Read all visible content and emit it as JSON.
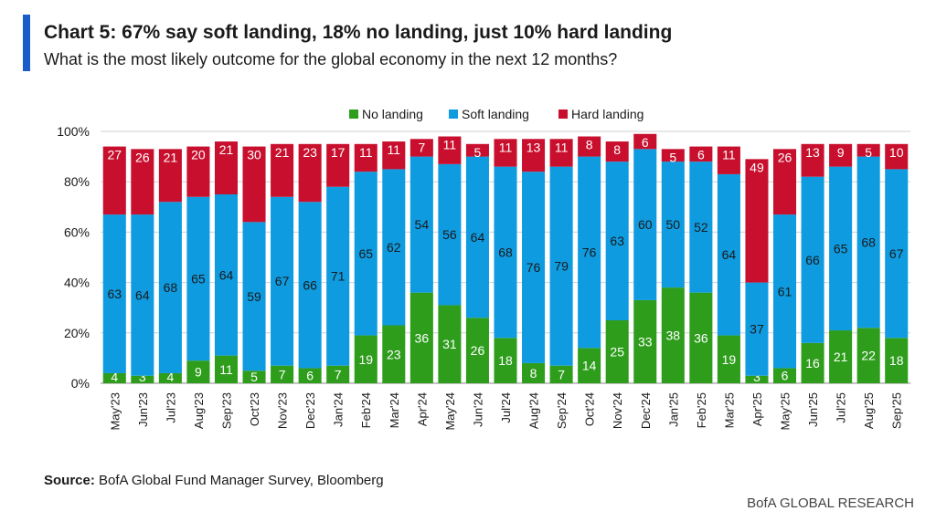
{
  "header": {
    "title": "Chart 5: 67% say soft landing, 18% no landing, just 10% hard landing",
    "subtitle": "What is the most likely outcome for the global economy in the next 12 months?"
  },
  "footer": {
    "source_label": "Source:",
    "source_text": "BofA Global Fund Manager Survey, Bloomberg",
    "brand": "BofA GLOBAL RESEARCH"
  },
  "colors": {
    "accent": "#1a5cc8",
    "no_landing": "#2e9d1c",
    "soft_landing": "#0f9be0",
    "hard_landing": "#c8102e",
    "grid": "#d0d0d0"
  },
  "chart_data": {
    "type": "bar",
    "stacked": true,
    "title": "Chart 5: 67% say soft landing, 18% no landing, just 10% hard landing",
    "subtitle": "What is the most likely outcome for the global economy in the next 12 months?",
    "ylim": [
      0,
      100
    ],
    "yticks": [
      "0%",
      "20%",
      "40%",
      "60%",
      "80%",
      "100%"
    ],
    "ytick_values": [
      0,
      20,
      40,
      60,
      80,
      100
    ],
    "grid": true,
    "legend": "top-center",
    "categories": [
      "May'23",
      "Jun'23",
      "Jul'23",
      "Aug'23",
      "Sep'23",
      "Oct'23",
      "Nov'23",
      "Dec'23",
      "Jan'24",
      "Feb'24",
      "Mar'24",
      "Apr'24",
      "May'24",
      "Jun'24",
      "Jul'24",
      "Aug'24",
      "Sep'24",
      "Oct'24",
      "Nov'24",
      "Dec'24",
      "Jan'25",
      "Feb'25",
      "Mar'25",
      "Apr'25",
      "May'25",
      "Jun'25",
      "Jul'25",
      "Aug'25",
      "Sep'25"
    ],
    "series": [
      {
        "name": "No landing",
        "color": "#2e9d1c",
        "values": [
          4,
          3,
          4,
          9,
          11,
          5,
          7,
          6,
          7,
          19,
          23,
          36,
          31,
          26,
          18,
          8,
          7,
          14,
          25,
          33,
          38,
          36,
          19,
          3,
          6,
          16,
          21,
          22,
          18
        ]
      },
      {
        "name": "Soft landing",
        "color": "#0f9be0",
        "values": [
          63,
          64,
          68,
          65,
          64,
          59,
          67,
          66,
          71,
          65,
          62,
          54,
          56,
          64,
          68,
          76,
          79,
          76,
          63,
          60,
          50,
          52,
          64,
          37,
          61,
          66,
          65,
          68,
          67
        ]
      },
      {
        "name": "Hard landing",
        "color": "#c8102e",
        "values": [
          27,
          26,
          21,
          20,
          21,
          30,
          21,
          23,
          17,
          11,
          11,
          7,
          11,
          5,
          11,
          13,
          11,
          8,
          8,
          6,
          5,
          6,
          11,
          49,
          26,
          13,
          9,
          5,
          10
        ]
      }
    ]
  }
}
